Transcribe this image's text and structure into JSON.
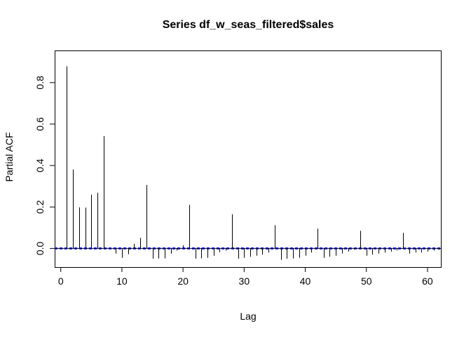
{
  "chart_data": {
    "type": "bar",
    "title": "Series  df_w_seas_filtered$sales",
    "xlabel": "Lag",
    "ylabel": "Partial ACF",
    "xlim": [
      -1,
      62.3
    ],
    "ylim": [
      -0.09,
      0.955
    ],
    "x_ticks": [
      0,
      10,
      20,
      30,
      40,
      50,
      60
    ],
    "x_tick_labels": [
      "0",
      "10",
      "20",
      "30",
      "40",
      "50",
      "60"
    ],
    "y_ticks": [
      0.0,
      0.2,
      0.4,
      0.6,
      0.8
    ],
    "y_tick_labels": [
      "0.0",
      "0.2",
      "0.4",
      "0.6",
      "0.8"
    ],
    "confidence_band": 0.003,
    "confidence_color": "#0000ff",
    "lags": [
      1,
      2,
      3,
      4,
      5,
      6,
      7,
      8,
      9,
      10,
      11,
      12,
      13,
      14,
      15,
      16,
      17,
      18,
      19,
      20,
      21,
      22,
      23,
      24,
      25,
      26,
      27,
      28,
      29,
      30,
      31,
      32,
      33,
      34,
      35,
      36,
      37,
      38,
      39,
      40,
      41,
      42,
      43,
      44,
      45,
      46,
      47,
      48,
      49,
      50,
      51,
      52,
      53,
      54,
      55,
      56,
      57,
      58,
      59,
      60,
      61,
      62
    ],
    "values": [
      0.879,
      0.381,
      0.198,
      0.197,
      0.259,
      0.269,
      0.542,
      0.0,
      -0.025,
      -0.045,
      -0.028,
      0.022,
      0.051,
      0.306,
      -0.05,
      -0.048,
      -0.048,
      -0.025,
      -0.01,
      0.015,
      0.21,
      -0.05,
      -0.048,
      -0.045,
      -0.035,
      -0.018,
      -0.01,
      0.165,
      -0.05,
      -0.045,
      -0.04,
      -0.035,
      -0.03,
      -0.02,
      0.112,
      -0.055,
      -0.05,
      -0.048,
      -0.045,
      -0.035,
      -0.02,
      0.095,
      -0.045,
      -0.04,
      -0.035,
      -0.025,
      -0.015,
      -0.005,
      0.085,
      -0.035,
      -0.03,
      -0.025,
      -0.02,
      -0.015,
      -0.01,
      0.075,
      -0.025,
      -0.02,
      -0.02,
      -0.015,
      -0.01,
      -0.005
    ]
  }
}
